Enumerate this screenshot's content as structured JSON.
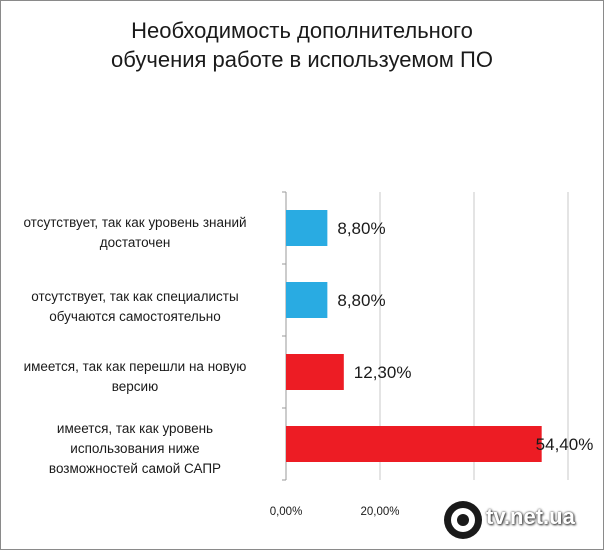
{
  "chart_data": {
    "type": "bar",
    "orientation": "horizontal",
    "title_lines": [
      "Необходимость дополнительного",
      "обучения работе в используемом ПО"
    ],
    "categories": [
      "отсутствует, так как уровень знаний достаточен",
      "отсутствует, так как специалисты обучаются самостоятельно",
      "имеется, так как перешли на новую версию",
      "имеется, так как уровень использования ниже возможностей самой САПР"
    ],
    "category_lines": [
      [
        "отсутствует, так как уровень знаний",
        "достаточен"
      ],
      [
        "отсутствует, так как специалисты",
        "обучаются самостоятельно"
      ],
      [
        "имеется, так как перешли на новую",
        "версию"
      ],
      [
        "имеется, так как уровень",
        "использования ниже",
        "возможностей самой САПР"
      ]
    ],
    "values": [
      8.8,
      8.8,
      12.3,
      54.4
    ],
    "data_labels": [
      "8,80%",
      "8,80%",
      "12,30%",
      "54,40%"
    ],
    "bar_colors": [
      "#29abe2",
      "#29abe2",
      "#ed1c24",
      "#ed1c24"
    ],
    "x_ticks": [
      0,
      20
    ],
    "x_tick_labels": [
      "0,00%",
      "20,00%"
    ],
    "xlim": [
      0,
      60
    ],
    "grid": true
  },
  "watermark": {
    "text": "tv.net.ua"
  }
}
